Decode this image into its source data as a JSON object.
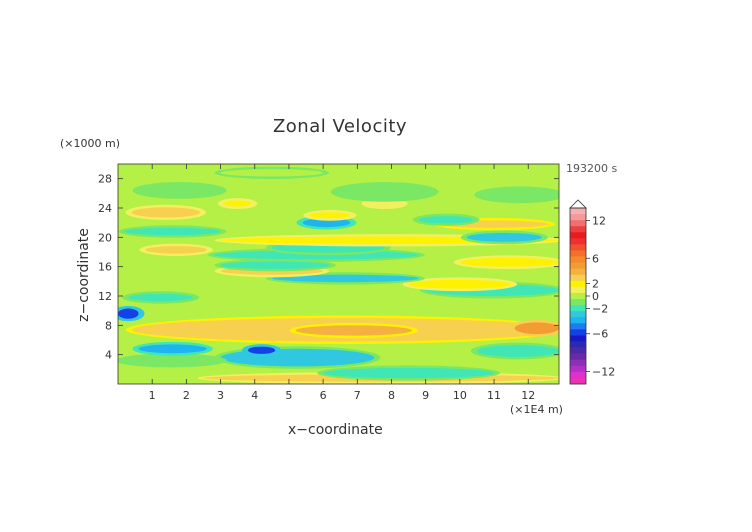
{
  "chart_data": {
    "type": "heatmap",
    "title": "Zonal Velocity",
    "xlabel": "x−coordinate",
    "ylabel": "z−coordinate",
    "x_unit_label": "(×1E4 m)",
    "y_unit_label": "(×1000 m)",
    "time_label": "193200 s",
    "xlim": [
      0,
      12.9
    ],
    "ylim": [
      0,
      30
    ],
    "x_ticks": [
      "1",
      "2",
      "3",
      "4",
      "5",
      "6",
      "7",
      "8",
      "9",
      "10",
      "11",
      "12"
    ],
    "y_ticks": [
      "4",
      "8",
      "12",
      "16",
      "20",
      "24",
      "28"
    ],
    "colorbar": {
      "tick_labels": [
        "12",
        "6",
        "2",
        "0",
        "−2",
        "−6",
        "−12"
      ],
      "levels": [
        14,
        13,
        12,
        11,
        10,
        9,
        8,
        7,
        6,
        5,
        4,
        3,
        2,
        1,
        0,
        -1,
        -2,
        -3,
        -4,
        -5,
        -6,
        -7,
        -8,
        -9,
        -10,
        -11,
        -12,
        -13,
        -14
      ],
      "colors": [
        "#f7b0b0",
        "#f59a9a",
        "#f07070",
        "#ec4040",
        "#e81c1c",
        "#ee3030",
        "#f25030",
        "#f47028",
        "#f48a2a",
        "#f49c34",
        "#f4b040",
        "#f7d050",
        "#fff200",
        "#f2f060",
        "#b4f046",
        "#7ae864",
        "#40e6b6",
        "#2fc8e0",
        "#1eb4f0",
        "#1c7cf0",
        "#1440e8",
        "#1818c8",
        "#2a2ab0",
        "#4a2aa8",
        "#6a2aa8",
        "#8c30b8",
        "#b030c8",
        "#dc30d0",
        "#f030b4"
      ]
    },
    "bands": [
      {
        "z": 0.8,
        "h": 1.0,
        "v": 2.6,
        "x0": 2.5,
        "x1": 12.9
      },
      {
        "z": 1.5,
        "h": 1.4,
        "v": -1.6,
        "x0": 6,
        "x1": 11
      },
      {
        "z": 3.6,
        "h": 2.4,
        "v": -2.8,
        "x0": 3,
        "x1": 7.5
      },
      {
        "z": 3.2,
        "h": 1.2,
        "v": -1.2,
        "x0": 0.1,
        "x1": 3
      },
      {
        "z": 4.8,
        "h": 1.2,
        "v": -4.5,
        "x0": 0.6,
        "x1": 2.6
      },
      {
        "z": 4.6,
        "h": 1.0,
        "v": -6.0,
        "x0": 3.8,
        "x1": 4.6
      },
      {
        "z": 4.5,
        "h": 1.6,
        "v": -2.2,
        "x0": 10.5,
        "x1": 12.9
      },
      {
        "z": 7.4,
        "h": 3.2,
        "v": 3.4,
        "x0": 0.4,
        "x1": 12.9
      },
      {
        "z": 7.3,
        "h": 1.4,
        "v": 4.4,
        "x0": 5.2,
        "x1": 8.6
      },
      {
        "z": 7.6,
        "h": 1.6,
        "v": 5.2,
        "x0": 11.6,
        "x1": 12.9
      },
      {
        "z": 9.6,
        "h": 1.4,
        "v": -6.0,
        "x0": 0.0,
        "x1": 0.6
      },
      {
        "z": 11.8,
        "h": 1.0,
        "v": -2.0,
        "x0": 0.3,
        "x1": 2.2
      },
      {
        "z": 12.8,
        "h": 1.6,
        "v": -1.6,
        "x0": 9.0,
        "x1": 12.9
      },
      {
        "z": 13.6,
        "h": 1.2,
        "v": 1.6,
        "x0": 8.5,
        "x1": 11.5
      },
      {
        "z": 14.4,
        "h": 1.0,
        "v": -2.6,
        "x0": 4.5,
        "x1": 8.8
      },
      {
        "z": 15.4,
        "h": 1.0,
        "v": 2.6,
        "x0": 3.0,
        "x1": 6.0
      },
      {
        "z": 16.2,
        "h": 1.0,
        "v": -2.4,
        "x0": 3.0,
        "x1": 6.2
      },
      {
        "z": 16.6,
        "h": 1.2,
        "v": 1.8,
        "x0": 10.0,
        "x1": 12.9
      },
      {
        "z": 17.6,
        "h": 1.2,
        "v": -2.0,
        "x0": 2.8,
        "x1": 8.8
      },
      {
        "z": 18.6,
        "h": 1.4,
        "v": -2.4,
        "x0": 4.5,
        "x1": 7.8
      },
      {
        "z": 18.3,
        "h": 1.0,
        "v": 2.6,
        "x0": 0.8,
        "x1": 2.6
      },
      {
        "z": 19.6,
        "h": 1.0,
        "v": 2.4,
        "x0": 3.0,
        "x1": 12.9
      },
      {
        "z": 20.0,
        "h": 1.2,
        "v": -3.0,
        "x0": 10.2,
        "x1": 12.4
      },
      {
        "z": 20.8,
        "h": 1.0,
        "v": -1.6,
        "x0": 0.2,
        "x1": 3.0
      },
      {
        "z": 21.8,
        "h": 1.0,
        "v": 3.0,
        "x0": 9.4,
        "x1": 12.6
      },
      {
        "z": 22.0,
        "h": 1.2,
        "v": -3.8,
        "x0": 5.4,
        "x1": 6.8
      },
      {
        "z": 22.4,
        "h": 1.0,
        "v": -2.2,
        "x0": 8.8,
        "x1": 10.4
      },
      {
        "z": 23.4,
        "h": 1.4,
        "v": 2.6,
        "x0": 0.4,
        "x1": 2.4
      },
      {
        "z": 23.0,
        "h": 0.8,
        "v": 1.8,
        "x0": 5.6,
        "x1": 6.8
      },
      {
        "z": 24.6,
        "h": 0.8,
        "v": 1.6,
        "x0": 3.1,
        "x1": 3.9
      },
      {
        "z": 24.6,
        "h": 0.8,
        "v": 1.2,
        "x0": 7.3,
        "x1": 8.3
      },
      {
        "z": 26.4,
        "h": 1.6,
        "v": -1.0,
        "x0": 0.6,
        "x1": 3.0
      },
      {
        "z": 26.2,
        "h": 2.0,
        "v": -1.0,
        "x0": 6.4,
        "x1": 9.2
      },
      {
        "z": 25.8,
        "h": 1.6,
        "v": -0.8,
        "x0": 10.6,
        "x1": 12.9
      },
      {
        "z": 28.8,
        "h": 1.0,
        "v": -0.4,
        "x0": 3.0,
        "x1": 6.0
      }
    ]
  }
}
